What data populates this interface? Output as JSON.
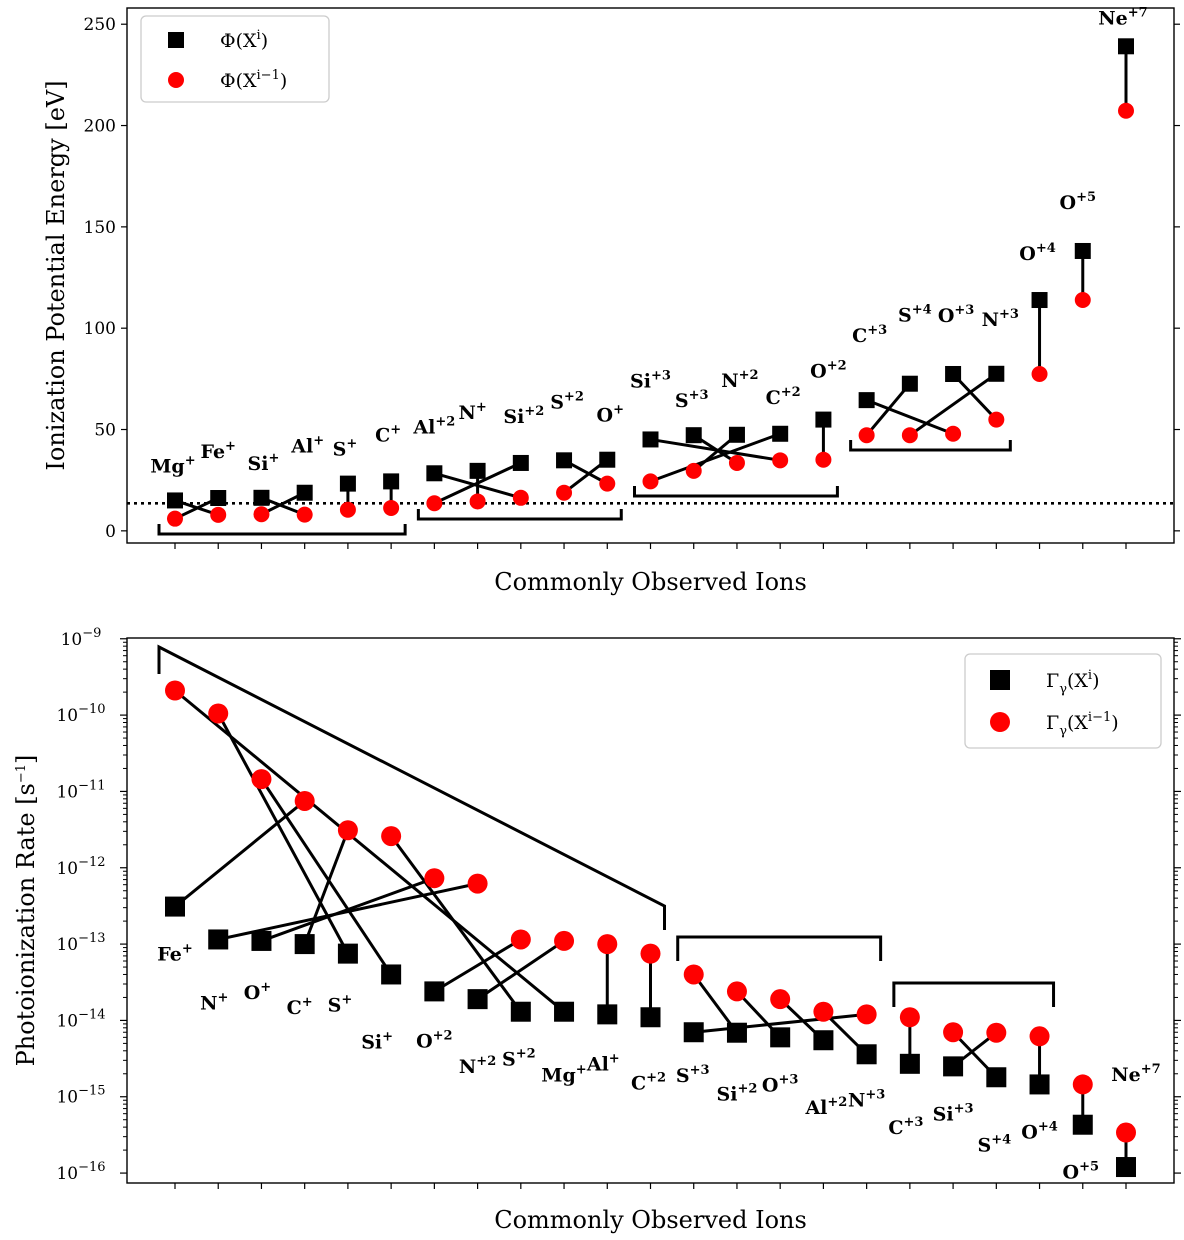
{
  "charts": {
    "top": {
      "type": "scatter",
      "xlabel": "Commonly Observed Ions",
      "ylabel": "Ionization Potential Energy [eV]",
      "ylim": [
        -6,
        258
      ],
      "yticks": [
        0,
        50,
        100,
        150,
        200,
        250
      ],
      "yticklabels": [
        "0",
        "50",
        "100",
        "150",
        "200",
        "250"
      ],
      "legend": {
        "position": "top-left",
        "entries": [
          {
            "label": "Φ(X",
            "sup": "i",
            "tail": ")",
            "marker": "square",
            "color": "#000000"
          },
          {
            "label": "Φ(X",
            "sup": "i−1",
            "tail": ")",
            "marker": "circle",
            "color": "#ff0000"
          }
        ]
      },
      "hline": 13.6,
      "ions": [
        {
          "x": 1,
          "base": "Mg",
          "charge": "+",
          "upper": 15.0,
          "lower": 6.0,
          "connect_to": 2
        },
        {
          "x": 2,
          "base": "Fe",
          "charge": "+",
          "upper": 16.2,
          "lower": 7.9,
          "connect_to": 1
        },
        {
          "x": 3,
          "base": "Si",
          "charge": "+",
          "upper": 16.3,
          "lower": 8.2,
          "connect_to": 4
        },
        {
          "x": 4,
          "base": "Al",
          "charge": "+",
          "upper": 18.8,
          "lower": 8.0,
          "connect_to": 3
        },
        {
          "x": 5,
          "base": "S",
          "charge": "+",
          "upper": 23.3,
          "lower": 10.4,
          "connect_to": 5
        },
        {
          "x": 6,
          "base": "C",
          "charge": "+",
          "upper": 24.4,
          "lower": 11.3,
          "connect_to": 6
        },
        {
          "x": 7,
          "base": "Al",
          "charge": "+2",
          "upper": 28.4,
          "lower": 13.6,
          "connect_to": 9
        },
        {
          "x": 8,
          "base": "N",
          "charge": "+",
          "upper": 29.6,
          "lower": 14.5,
          "connect_to": 8
        },
        {
          "x": 9,
          "base": "Si",
          "charge": "+2",
          "upper": 33.5,
          "lower": 16.3,
          "connect_to": 7
        },
        {
          "x": 10,
          "base": "S",
          "charge": "+2",
          "upper": 34.8,
          "lower": 18.8,
          "connect_to": 11
        },
        {
          "x": 11,
          "base": "O",
          "charge": "+",
          "upper": 35.1,
          "lower": 23.3,
          "connect_to": 10
        },
        {
          "x": 12,
          "base": "Si",
          "charge": "+3",
          "upper": 45.1,
          "lower": 24.4,
          "connect_to": 15
        },
        {
          "x": 13,
          "base": "S",
          "charge": "+3",
          "upper": 47.2,
          "lower": 29.6,
          "connect_to": 14
        },
        {
          "x": 14,
          "base": "N",
          "charge": "+2",
          "upper": 47.4,
          "lower": 33.5,
          "connect_to": 13
        },
        {
          "x": 15,
          "base": "C",
          "charge": "+2",
          "upper": 47.9,
          "lower": 34.8,
          "connect_to": 12
        },
        {
          "x": 16,
          "base": "O",
          "charge": "+2",
          "upper": 54.9,
          "lower": 35.1,
          "connect_to": 16
        },
        {
          "x": 17,
          "base": "C",
          "charge": "+3",
          "upper": 64.5,
          "lower": 47.2,
          "connect_to": 19
        },
        {
          "x": 18,
          "base": "S",
          "charge": "+4",
          "upper": 72.6,
          "lower": 47.2,
          "connect_to": 17
        },
        {
          "x": 19,
          "base": "O",
          "charge": "+3",
          "upper": 77.4,
          "lower": 47.9,
          "connect_to": 20
        },
        {
          "x": 20,
          "base": "N",
          "charge": "+3",
          "upper": 77.5,
          "lower": 54.9,
          "connect_to": 18
        },
        {
          "x": 21,
          "base": "O",
          "charge": "+4",
          "upper": 113.9,
          "lower": 77.4,
          "connect_to": 21
        },
        {
          "x": 22,
          "base": "O",
          "charge": "+5",
          "upper": 138.1,
          "lower": 113.9,
          "connect_to": 22
        },
        {
          "x": 23,
          "base": "Ne",
          "charge": "+7",
          "upper": 239.1,
          "lower": 207.3,
          "connect_to": 23
        }
      ],
      "brackets": [
        [
          1,
          6
        ],
        [
          7,
          11
        ],
        [
          12,
          16
        ],
        [
          17,
          20
        ]
      ]
    },
    "bottom": {
      "type": "scatter",
      "xlabel": "Commonly Observed Ions",
      "ylabel": "Photoionization Rate [s",
      "ylabel_sup": "−1",
      "ylabel_tail": "]",
      "yscale": "log",
      "ylim_exp": [
        -16.13,
        -8.99
      ],
      "yticklabels": [
        {
          "base": "10",
          "exp": "−9",
          "v": -9
        },
        {
          "base": "10",
          "exp": "−10",
          "v": -10
        },
        {
          "base": "10",
          "exp": "−11",
          "v": -11
        },
        {
          "base": "10",
          "exp": "−12",
          "v": -12
        },
        {
          "base": "10",
          "exp": "−13",
          "v": -13
        },
        {
          "base": "10",
          "exp": "−14",
          "v": -14
        },
        {
          "base": "10",
          "exp": "−15",
          "v": -15
        },
        {
          "base": "10",
          "exp": "−16",
          "v": -16
        }
      ],
      "legend": {
        "position": "top-right",
        "entries": [
          {
            "label": "Γ",
            "sub": "γ",
            "mid": "(X",
            "sup": "i",
            "tail": ")",
            "marker": "square",
            "color": "#000000"
          },
          {
            "label": "Γ",
            "sub": "γ",
            "mid": "(X",
            "sup": "i−1",
            "tail": ")",
            "marker": "circle",
            "color": "#ff0000"
          }
        ]
      },
      "ions": [
        {
          "x": 1,
          "base": "Fe",
          "charge": "+",
          "upper": 3.1e-13,
          "connect_to": 4
        },
        {
          "x": 2,
          "base": "N",
          "charge": "+",
          "upper": 1.15e-13,
          "connect_to": 8
        },
        {
          "x": 3,
          "base": "O",
          "charge": "+",
          "upper": 1.1e-13,
          "connect_to": 7
        },
        {
          "x": 4,
          "base": "C",
          "charge": "+",
          "upper": 1e-13,
          "connect_to": 5
        },
        {
          "x": 5,
          "base": "S",
          "charge": "+",
          "upper": 7.5e-14,
          "connect_to": 2
        },
        {
          "x": 6,
          "base": "Si",
          "charge": "+",
          "upper": 4e-14,
          "connect_to": 3
        },
        {
          "x": 7,
          "base": "O",
          "charge": "+2",
          "upper": 2.4e-14,
          "connect_to": 9
        },
        {
          "x": 8,
          "base": "N",
          "charge": "+2",
          "upper": 1.9e-14,
          "connect_to": 10
        },
        {
          "x": 9,
          "base": "S",
          "charge": "+2",
          "upper": 1.3e-14,
          "connect_to": 6
        },
        {
          "x": 10,
          "base": "Mg",
          "charge": "+",
          "upper": 1.3e-14,
          "connect_to": 1
        },
        {
          "x": 11,
          "base": "Al",
          "charge": "+",
          "upper": 1.2e-14,
          "connect_to": 11
        },
        {
          "x": 12,
          "base": "C",
          "charge": "+2",
          "upper": 1.1e-14,
          "connect_to": 12
        },
        {
          "x": 13,
          "base": "S",
          "charge": "+3",
          "upper": 7e-15,
          "connect_to": 17
        },
        {
          "x": 14,
          "base": "Si",
          "charge": "+2",
          "upper": 6.9e-15,
          "connect_to": 13
        },
        {
          "x": 15,
          "base": "O",
          "charge": "+3",
          "upper": 6e-15,
          "connect_to": 14
        },
        {
          "x": 16,
          "base": "Al",
          "charge": "+2",
          "upper": 5.5e-15,
          "connect_to": 15
        },
        {
          "x": 17,
          "base": "N",
          "charge": "+3",
          "upper": 3.6e-15,
          "connect_to": 16
        },
        {
          "x": 18,
          "base": "C",
          "charge": "+3",
          "upper": 2.7e-15,
          "connect_to": 18
        },
        {
          "x": 19,
          "base": "Si",
          "charge": "+3",
          "upper": 2.5e-15,
          "connect_to": 20
        },
        {
          "x": 20,
          "base": "S",
          "charge": "+4",
          "upper": 1.8e-15,
          "connect_to": 19
        },
        {
          "x": 21,
          "base": "O",
          "charge": "+4",
          "upper": 1.45e-15,
          "connect_to": 21
        },
        {
          "x": 22,
          "base": "O",
          "charge": "+5",
          "upper": 4.3e-16,
          "connect_to": 22
        },
        {
          "x": 23,
          "base": "Ne",
          "charge": "+7",
          "upper": 1.2e-16,
          "connect_to": 23
        }
      ],
      "lower_values": [
        2.1e-10,
        1.05e-10,
        1.45e-11,
        7.5e-12,
        3.1e-12,
        2.6e-12,
        7.3e-13,
        6.2e-13,
        1.15e-13,
        1.1e-13,
        1e-13,
        7.5e-14,
        4e-14,
        2.4e-14,
        1.9e-14,
        1.3e-14,
        1.2e-14,
        1.1e-14,
        7e-15,
        6.9e-15,
        6.2e-15,
        1.45e-15,
        3.4e-16
      ],
      "brackets": [
        [
          1,
          12
        ],
        [
          13,
          17
        ],
        [
          18,
          21
        ]
      ]
    }
  }
}
